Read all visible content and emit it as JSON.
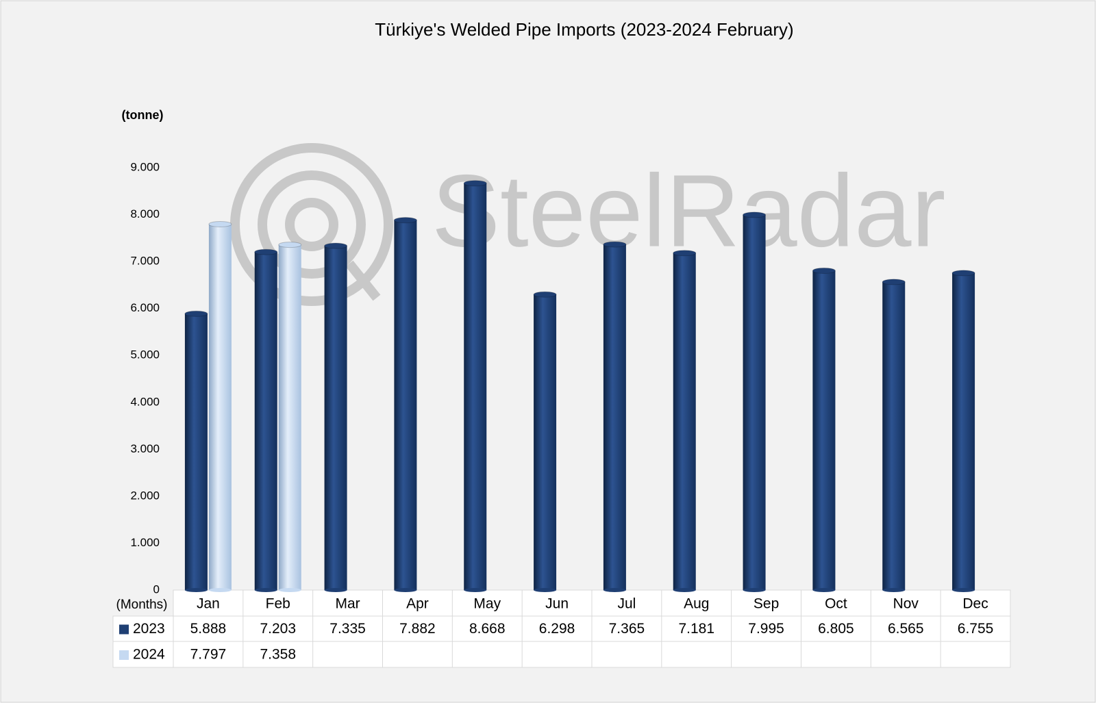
{
  "chart_data": {
    "type": "bar",
    "title": "Türkiye's Welded Pipe Imports (2023-2024 February)",
    "ylabel": "(tonne)",
    "xlabel": "(Months)",
    "watermark": "SteelRadar",
    "categories": [
      "Jan",
      "Feb",
      "Mar",
      "Apr",
      "May",
      "Jun",
      "Jul",
      "Aug",
      "Sep",
      "Oct",
      "Nov",
      "Dec"
    ],
    "series": [
      {
        "name": "2023",
        "color": "#1f3f73",
        "values": [
          5888,
          7203,
          7335,
          7882,
          8668,
          6298,
          7365,
          7181,
          7995,
          6805,
          6565,
          6755
        ],
        "value_labels": [
          "5.888",
          "7.203",
          "7.335",
          "7.882",
          "8.668",
          "6.298",
          "7.365",
          "7.181",
          "7.995",
          "6.805",
          "6.565",
          "6.755"
        ]
      },
      {
        "name": "2024",
        "color": "#c5d9f1",
        "values": [
          7797,
          7358,
          null,
          null,
          null,
          null,
          null,
          null,
          null,
          null,
          null,
          null
        ],
        "value_labels": [
          "7.797",
          "7.358",
          null,
          null,
          null,
          null,
          null,
          null,
          null,
          null,
          null,
          null
        ]
      }
    ],
    "ylim": [
      0,
      9000
    ],
    "yticks": [
      0,
      {
        "value": 1000,
        "label": "1.000"
      },
      {
        "value": 2000,
        "label": "2.000"
      },
      {
        "value": 3000,
        "label": "3.000"
      },
      {
        "value": 4000,
        "label": "4.000"
      },
      {
        "value": 5000,
        "label": "5.000"
      },
      {
        "value": 6000,
        "label": "6.000"
      },
      {
        "value": 7000,
        "label": "7.000"
      },
      {
        "value": 8000,
        "label": "8.000"
      },
      {
        "value": 9000,
        "label": "9.000"
      }
    ],
    "grid": false,
    "legend": "table"
  }
}
